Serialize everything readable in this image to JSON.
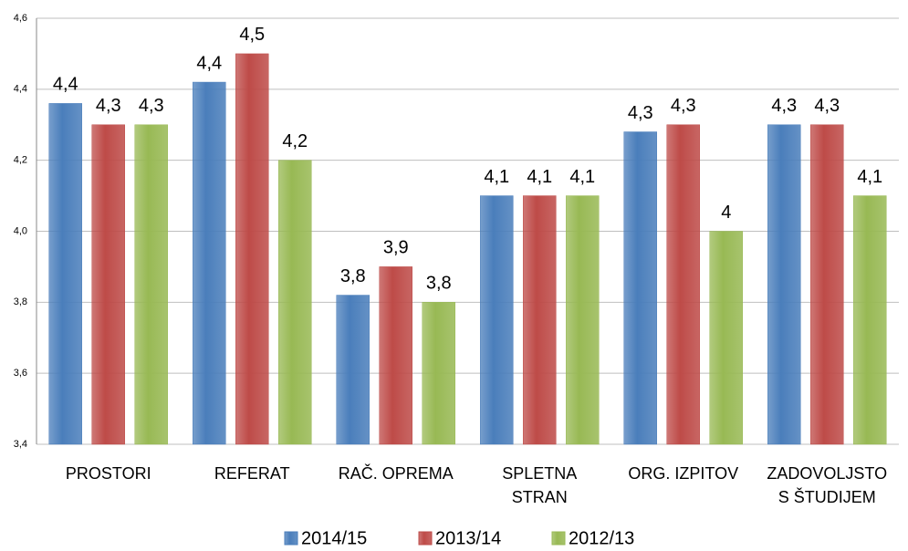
{
  "chart_data": {
    "type": "bar",
    "categories": [
      "PROSTORI",
      "REFERAT",
      "RAČ. OPREMA",
      "SPLETNA\nSTRAN",
      "ORG. IZPITOV",
      "ZADOVOLJSTO\nS ŠTUDIJEM"
    ],
    "series": [
      {
        "name": "2014/15",
        "color": "#4a7ebb",
        "values": [
          4.36,
          4.42,
          3.82,
          4.1,
          4.28,
          4.3
        ],
        "value_labels": [
          "4,4",
          "4,4",
          "3,8",
          "4,1",
          "4,3",
          "4,3"
        ]
      },
      {
        "name": "2013/14",
        "color": "#be4b48",
        "values": [
          4.3,
          4.5,
          3.9,
          4.1,
          4.3,
          4.3
        ],
        "value_labels": [
          "4,3",
          "4,5",
          "3,9",
          "4,1",
          "4,3",
          "4,3"
        ]
      },
      {
        "name": "2012/13",
        "color": "#98b954",
        "values": [
          4.3,
          4.2,
          3.8,
          4.1,
          4.0,
          4.1
        ],
        "value_labels": [
          "4,3",
          "4,2",
          "3,8",
          "4,1",
          "4",
          "4,1"
        ]
      }
    ],
    "ylim": [
      3.4,
      4.6
    ],
    "yticks": [
      {
        "value": 3.4,
        "label": "3,4"
      },
      {
        "value": 3.6,
        "label": "3,6"
      },
      {
        "value": 3.8,
        "label": "3,8"
      },
      {
        "value": 4.0,
        "label": "4,0"
      },
      {
        "value": 4.2,
        "label": "4,2"
      },
      {
        "value": 4.4,
        "label": "4,4"
      },
      {
        "value": 4.6,
        "label": "4,6"
      }
    ],
    "grid": true,
    "legend": "bottom"
  }
}
